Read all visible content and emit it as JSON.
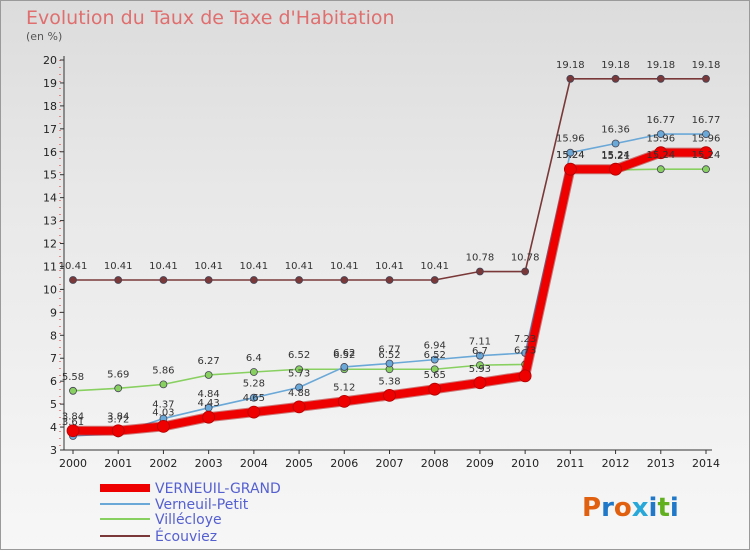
{
  "chart_data": {
    "type": "line",
    "title": "Evolution du Taux de Taxe d'Habitation",
    "subtitle": "(en %)",
    "xlabel": "",
    "ylabel": "",
    "categories": [
      "2000",
      "2001",
      "2002",
      "2003",
      "2004",
      "2005",
      "2006",
      "2007",
      "2008",
      "2009",
      "2010",
      "2011",
      "2012",
      "2013",
      "2014"
    ],
    "ylim": [
      3,
      20
    ],
    "yticks": [
      3,
      4,
      5,
      6,
      7,
      8,
      9,
      10,
      11,
      12,
      13,
      14,
      15,
      16,
      17,
      18,
      19,
      20
    ],
    "grid": false,
    "legend": "bottom-left",
    "series": [
      {
        "name": "VERNEUIL-GRAND",
        "color": "#ee0000",
        "values": [
          3.84,
          3.84,
          4.03,
          4.43,
          4.65,
          4.88,
          5.12,
          5.38,
          5.65,
          5.93,
          6.23,
          15.24,
          15.24,
          15.96,
          15.96
        ],
        "labels_shown": [
          false,
          true,
          true,
          true,
          true,
          true,
          true,
          true,
          true,
          true,
          false,
          true,
          true,
          true,
          true
        ]
      },
      {
        "name": "Verneuil-Petit",
        "color": "#6aa8d8",
        "values": [
          3.61,
          3.72,
          4.37,
          4.84,
          5.28,
          5.73,
          6.62,
          6.77,
          6.94,
          7.11,
          7.23,
          15.96,
          16.36,
          16.77,
          16.77
        ],
        "labels_shown": [
          true,
          true,
          true,
          true,
          true,
          true,
          true,
          true,
          true,
          true,
          true,
          true,
          true,
          true,
          true
        ]
      },
      {
        "name": "Villécloye",
        "color": "#88d060",
        "values": [
          5.58,
          5.69,
          5.86,
          6.27,
          6.4,
          6.52,
          6.52,
          6.52,
          6.52,
          6.7,
          6.73,
          15.24,
          15.21,
          15.24,
          15.24
        ],
        "labels_shown": [
          true,
          true,
          true,
          true,
          true,
          true,
          true,
          true,
          true,
          true,
          true,
          true,
          true,
          true,
          true
        ]
      },
      {
        "name": "Écouviez",
        "color": "#7a3838",
        "values": [
          10.41,
          10.41,
          10.41,
          10.41,
          10.41,
          10.41,
          10.41,
          10.41,
          10.41,
          10.78,
          10.78,
          19.18,
          19.18,
          19.18,
          19.18
        ],
        "labels_shown": [
          true,
          true,
          true,
          true,
          true,
          true,
          true,
          true,
          true,
          true,
          true,
          true,
          true,
          true,
          true
        ]
      }
    ],
    "value_labels": {
      "Écouviez": [
        "10.41",
        "10.41",
        "10.41",
        "10.41",
        "10.41",
        "10.41",
        "10.41",
        "10.41",
        "10.41",
        "10.78",
        "10.78",
        "19.18",
        "19.18",
        "19.18",
        "19.18"
      ],
      "Villécloye": [
        "5.58",
        "5.69",
        "5.86",
        "6.27",
        "6.4",
        "6.52",
        "6.52",
        "6.52",
        "6.52",
        "6.7",
        "6.73",
        "15.24",
        "15.21",
        "15.24",
        "15.24"
      ],
      "Verneuil-Petit": [
        "3.61",
        "3.72",
        "4.37",
        "4.84",
        "5.28",
        "5.73",
        "6.62",
        "6.77",
        "6.94",
        "7.11",
        "7.23",
        "15.96",
        "16.36",
        "16.77",
        "16.77"
      ],
      "VERNEUIL-GRAND": [
        "",
        "3.84",
        "4.03",
        "4.43",
        "4.65",
        "4.88",
        "5.12",
        "5.38",
        "5.65",
        "5.93",
        "",
        "15.24",
        "15.24",
        "15.96",
        "15.96"
      ],
      "extra": [
        {
          "year": "2000",
          "text": "3.84"
        }
      ]
    }
  },
  "logo": {
    "text": "Proxiti"
  }
}
